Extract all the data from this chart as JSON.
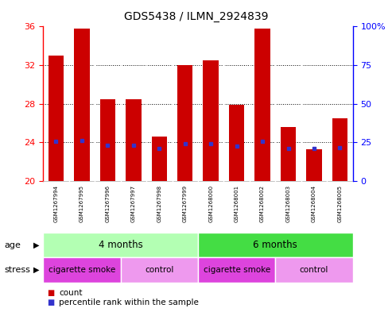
{
  "title": "GDS5438 / ILMN_2924839",
  "samples": [
    "GSM1267994",
    "GSM1267995",
    "GSM1267996",
    "GSM1267997",
    "GSM1267998",
    "GSM1267999",
    "GSM1268000",
    "GSM1268001",
    "GSM1268002",
    "GSM1268003",
    "GSM1268004",
    "GSM1268005"
  ],
  "counts": [
    33.0,
    35.8,
    28.5,
    28.5,
    24.6,
    32.0,
    32.5,
    27.9,
    35.8,
    25.6,
    23.3,
    26.5
  ],
  "percentile_ranks_pct": [
    25.5,
    26.0,
    23.3,
    23.3,
    21.0,
    24.2,
    24.3,
    22.8,
    25.8,
    21.2,
    20.8,
    21.5
  ],
  "ylim_left": [
    20,
    36
  ],
  "ylim_right": [
    0,
    100
  ],
  "yticks_left": [
    20,
    24,
    28,
    32,
    36
  ],
  "yticks_right": [
    0,
    25,
    50,
    75,
    100
  ],
  "ytick_right_labels": [
    "0",
    "25",
    "50",
    "75",
    "100%"
  ],
  "bar_color": "#cc0000",
  "dot_color": "#3333cc",
  "bar_width": 0.6,
  "age_groups": [
    {
      "label": "4 months",
      "start": 0,
      "end": 6,
      "color": "#b3ffb3"
    },
    {
      "label": "6 months",
      "start": 6,
      "end": 12,
      "color": "#44dd44"
    }
  ],
  "stress_groups": [
    {
      "label": "cigarette smoke",
      "start": 0,
      "end": 3,
      "color": "#dd44dd"
    },
    {
      "label": "control",
      "start": 3,
      "end": 6,
      "color": "#ee99ee"
    },
    {
      "label": "cigarette smoke",
      "start": 6,
      "end": 9,
      "color": "#dd44dd"
    },
    {
      "label": "control",
      "start": 9,
      "end": 12,
      "color": "#ee99ee"
    }
  ],
  "age_label": "age",
  "stress_label": "stress",
  "background_color": "#ffffff",
  "sample_bg": "#cccccc",
  "gridline_ticks": [
    24,
    28,
    32
  ],
  "legend_count_color": "#cc0000",
  "legend_pct_color": "#3333cc"
}
